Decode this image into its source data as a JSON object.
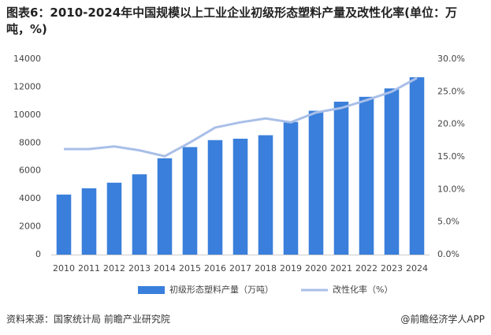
{
  "chart_data": {
    "type": "bar_line",
    "title": "图表6：2010-2024年中国规模以上工业企业初级形态塑料产量及改性化率(单位：万吨，%)",
    "categories": [
      "2010",
      "2011",
      "2012",
      "2013",
      "2014",
      "2015",
      "2016",
      "2017",
      "2018",
      "2019",
      "2020",
      "2021",
      "2022",
      "2023",
      "2024"
    ],
    "series": [
      {
        "name": "初级形态塑料产量（万吨）",
        "type": "bar",
        "color": "#3a7fdb",
        "values": [
          4300,
          4750,
          5150,
          5750,
          6900,
          7700,
          8200,
          8300,
          8550,
          9500,
          10300,
          10950,
          11300,
          11900,
          12700
        ]
      },
      {
        "name": "改性化率（%）",
        "type": "line",
        "axis": "y2",
        "color": "#a9bfe8",
        "values": [
          16.2,
          16.2,
          16.6,
          16.0,
          15.1,
          17.2,
          19.5,
          20.3,
          20.9,
          20.3,
          21.8,
          22.5,
          23.7,
          25.0,
          27.1
        ]
      }
    ],
    "ylim": [
      0,
      14000
    ],
    "yticks": [
      0,
      2000,
      4000,
      6000,
      8000,
      10000,
      12000,
      14000
    ],
    "y2lim": [
      0,
      30
    ],
    "y2ticks": [
      {
        "value": 0,
        "label": "0.0%"
      },
      {
        "value": 5,
        "label": "5.0%"
      },
      {
        "value": 10,
        "label": "10.0%"
      },
      {
        "value": 15,
        "label": "15.0%"
      },
      {
        "value": 20,
        "label": "20.0%"
      },
      {
        "value": 25,
        "label": "25.0%"
      },
      {
        "value": 30,
        "label": "30.0%"
      }
    ],
    "grid": false,
    "legend": "bottom"
  },
  "footer": {
    "source": "资料来源：国家统计局 前瞻产业研究院",
    "brand": "@前瞻经济学人APP"
  }
}
